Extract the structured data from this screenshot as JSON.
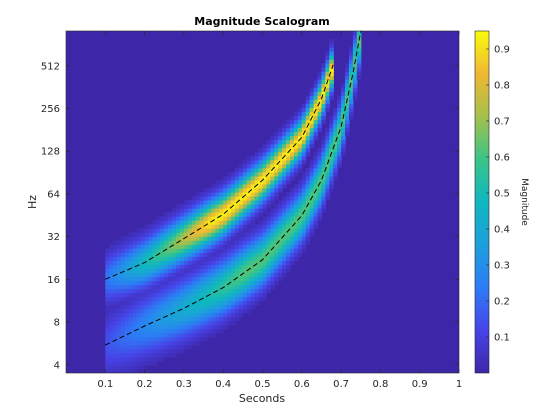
{
  "chart_data": {
    "type": "heatmap",
    "title": "Magnitude Scalogram",
    "xlabel": "Seconds",
    "ylabel": "Hz",
    "y_scale": "log2",
    "xlim": [
      0,
      1
    ],
    "ylim": [
      3.5,
      900
    ],
    "x_ticks": [
      0.1,
      0.2,
      0.3,
      0.4,
      0.5,
      0.6,
      0.7,
      0.8,
      0.9,
      1
    ],
    "x_tick_labels": [
      "0.1",
      "0.2",
      "0.3",
      "0.4",
      "0.5",
      "0.6",
      "0.7",
      "0.8",
      "0.9",
      "1"
    ],
    "y_ticks": [
      4,
      8,
      16,
      32,
      64,
      128,
      256,
      512
    ],
    "y_tick_labels": [
      "4",
      "8",
      "16",
      "32",
      "64",
      "128",
      "256",
      "512"
    ],
    "background_color": "#3e26a8",
    "colormap": "parula",
    "colorbar": {
      "label": "Magnitude",
      "range": [
        0,
        0.95
      ],
      "ticks": [
        0.1,
        0.2,
        0.3,
        0.4,
        0.5,
        0.6,
        0.7,
        0.8,
        0.9
      ],
      "tick_labels": [
        "0.1",
        "0.2",
        "0.3",
        "0.4",
        "0.5",
        "0.6",
        "0.7",
        "0.8",
        "0.9"
      ]
    },
    "series": [
      {
        "style": "black dashed",
        "x": [
          0.1,
          0.2,
          0.3,
          0.4,
          0.5,
          0.6,
          0.65,
          0.68
        ],
        "y": [
          16,
          21,
          31,
          46,
          80,
          160,
          300,
          520
        ]
      },
      {
        "style": "black dashed",
        "x": [
          0.1,
          0.2,
          0.3,
          0.4,
          0.5,
          0.6,
          0.65,
          0.7,
          0.73,
          0.75
        ],
        "y": [
          5.5,
          7.5,
          10,
          14,
          22,
          45,
          80,
          190,
          450,
          900
        ]
      }
    ]
  }
}
